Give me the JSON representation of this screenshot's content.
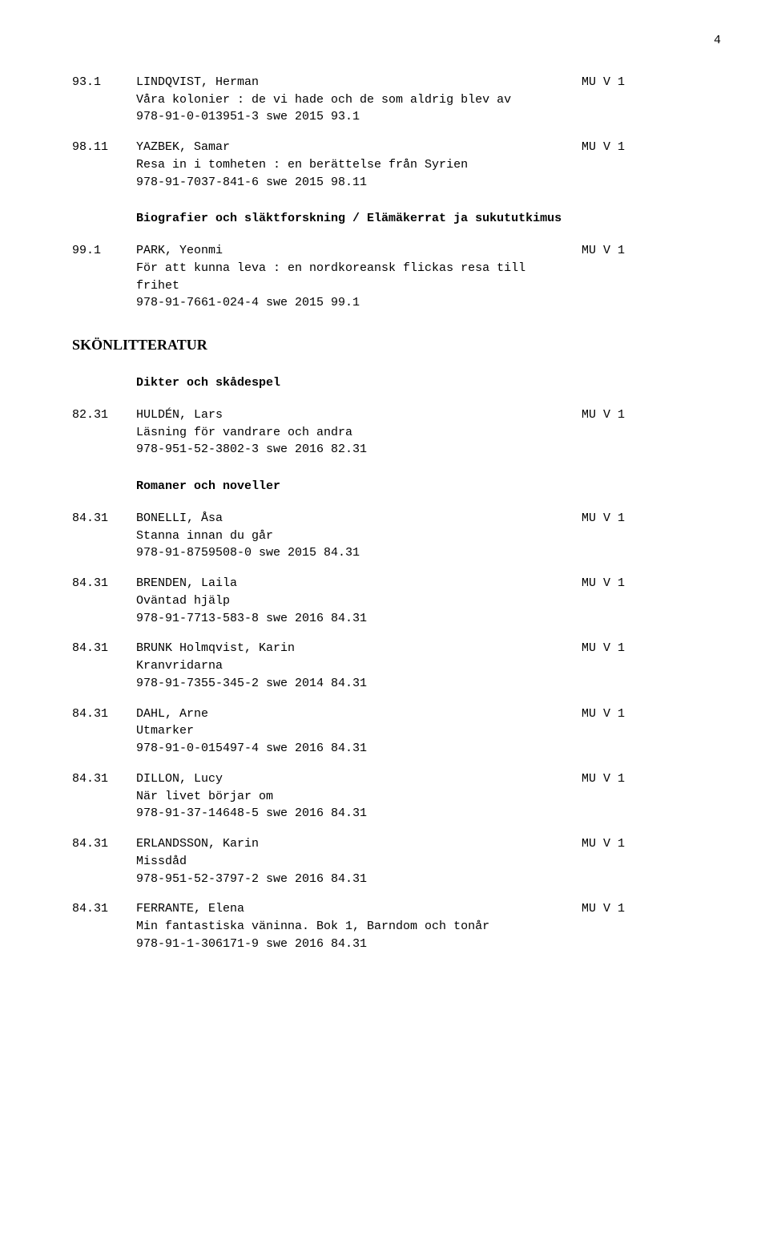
{
  "page_number": "4",
  "entries_block1": [
    {
      "code": "93.1",
      "author": "LINDQVIST, Herman",
      "tag": "MU V 1",
      "title": "Våra kolonier : de vi hade och de som aldrig blev av",
      "isbn": "978-91-0-013951-3 swe 2015 93.1"
    },
    {
      "code": "98.11",
      "author": "YAZBEK, Samar",
      "tag": "MU V 1",
      "title": "Resa in i tomheten : en berättelse från Syrien",
      "isbn": "978-91-7037-841-6 swe 2015 98.11"
    }
  ],
  "section1_title": "Biografier och släktforskning / Elämäkerrat ja sukututkimus",
  "entries_block2": [
    {
      "code": "99.1",
      "author": "PARK, Yeonmi",
      "tag": "MU V 1",
      "title": "För att kunna leva : en nordkoreansk flickas resa till",
      "title2": "frihet",
      "isbn": "978-91-7661-024-4 swe 2015 99.1"
    }
  ],
  "skon_title": "SKÖNLITTERATUR",
  "sub_dikter": "Dikter och skådespel",
  "entries_block3": [
    {
      "code": "82.31",
      "author": "HULDÉN, Lars",
      "tag": "MU V 1",
      "title": "Läsning för vandrare och andra",
      "isbn": "978-951-52-3802-3 swe 2016 82.31"
    }
  ],
  "sub_romaner": "Romaner och noveller",
  "entries_block4": [
    {
      "code": "84.31",
      "author": "BONELLI, Åsa",
      "tag": "MU V 1",
      "title": "Stanna innan du går",
      "isbn": "978-91-8759508-0  swe 2015 84.31"
    },
    {
      "code": "84.31",
      "author": "BRENDEN, Laila",
      "tag": "MU V 1",
      "title": "Oväntad hjälp",
      "isbn": "978-91-7713-583-8 swe 2016 84.31"
    },
    {
      "code": "84.31",
      "author": "BRUNK Holmqvist, Karin",
      "tag": "MU V 1",
      "title": "Kranvridarna",
      "isbn": "978-91-7355-345-2 swe 2014 84.31"
    },
    {
      "code": "84.31",
      "author": "DAHL, Arne",
      "tag": "MU V 1",
      "title": "Utmarker",
      "isbn": "978-91-0-015497-4 swe 2016 84.31"
    },
    {
      "code": "84.31",
      "author": "DILLON, Lucy",
      "tag": "MU V 1",
      "title": "När livet börjar om",
      "isbn": "978-91-37-14648-5 swe 2016 84.31"
    },
    {
      "code": "84.31",
      "author": "ERLANDSSON, Karin",
      "tag": "MU V 1",
      "title": "Missdåd",
      "isbn": "978-951-52-3797-2 swe 2016 84.31"
    },
    {
      "code": "84.31",
      "author": "FERRANTE, Elena",
      "tag": "MU V 1",
      "title": "Min fantastiska väninna. Bok 1, Barndom och tonår",
      "isbn": "978-91-1-306171-9 swe 2016 84.31"
    }
  ]
}
